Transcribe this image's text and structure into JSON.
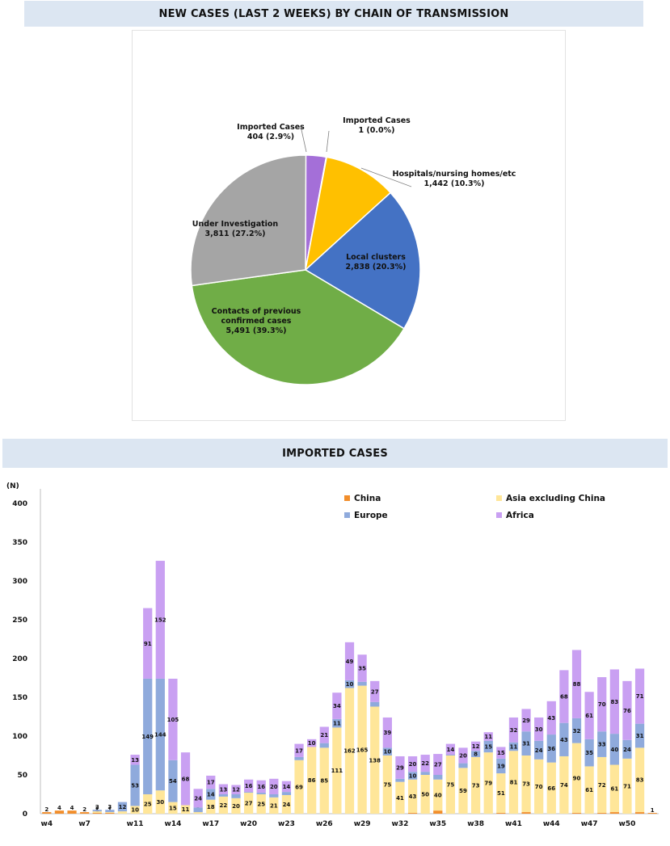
{
  "pie_title": "NEW CASES (LAST 2 WEEKS) BY CHAIN OF TRANSMISSION",
  "bar_title": "IMPORTED CASES",
  "chart_data": [
    {
      "type": "pie",
      "slices": [
        {
          "name": "Imported Cases",
          "label_lines": [
            "Imported Cases",
            "404 (2.9%)"
          ],
          "value": 404,
          "percent": 2.9,
          "color": "#a46fd8"
        },
        {
          "name": "Imported Cases",
          "label_lines": [
            "Imported Cases",
            "1 (0.0%)"
          ],
          "value": 1,
          "percent": 0.0,
          "color": "#7f4fb0"
        },
        {
          "name": "Hospitals/nursing homes/etc",
          "label_lines": [
            "Hospitals/nursing homes/etc",
            "1,442 (10.3%)"
          ],
          "value": 1442,
          "percent": 10.3,
          "color": "#ffc000"
        },
        {
          "name": "Local clusters",
          "label_lines": [
            "Local clusters",
            "2,838 (20.3%)"
          ],
          "value": 2838,
          "percent": 20.3,
          "color": "#4472c4"
        },
        {
          "name": "Contacts of previous confirmed cases",
          "label_lines": [
            "Contacts of previous",
            "confirmed cases",
            "5,491 (39.3%)"
          ],
          "value": 5491,
          "percent": 39.3,
          "color": "#70ad47"
        },
        {
          "name": "Under Investigation",
          "label_lines": [
            "Under Investigation",
            "3,811 (27.2%)"
          ],
          "value": 3811,
          "percent": 27.2,
          "color": "#a5a5a5"
        }
      ]
    },
    {
      "type": "bar",
      "stacked": true,
      "ylabel": "(N)",
      "ylim": [
        0,
        400
      ],
      "yticks": [
        "0",
        "50",
        "100",
        "150",
        "200",
        "250",
        "300",
        "350",
        "400"
      ],
      "x": [
        "w4",
        "w5",
        "w6",
        "w7",
        "w8",
        "w9",
        "w10",
        "w11",
        "w12",
        "w13",
        "w14",
        "w15",
        "w16",
        "w17",
        "w18",
        "w19",
        "w20",
        "w21",
        "w22",
        "w23",
        "w24",
        "w25",
        "w26",
        "w27",
        "w28",
        "w29",
        "w30",
        "w31",
        "w32",
        "w33",
        "w34",
        "w35",
        "w36",
        "w37",
        "w38",
        "w39",
        "w40",
        "w41",
        "w42",
        "w43",
        "w44",
        "w45",
        "w46",
        "w47",
        "w48",
        "w49",
        "w50",
        "w51",
        "w52"
      ],
      "xtick_labels": [
        "w4",
        "",
        "",
        "w7",
        "",
        "",
        "",
        "w11",
        "",
        "",
        "w14",
        "",
        "",
        "w17",
        "",
        "",
        "w20",
        "",
        "",
        "w23",
        "",
        "",
        "w26",
        "",
        "",
        "w29",
        "",
        "",
        "w32",
        "",
        "",
        "w35",
        "",
        "",
        "w38",
        "",
        "",
        "w41",
        "",
        "",
        "w44",
        "",
        "",
        "w47",
        "",
        "",
        "w50",
        "",
        ""
      ],
      "legend": [
        {
          "name": "China",
          "color": "#f28e2b"
        },
        {
          "name": "Asia excluding China",
          "color": "#ffe699"
        },
        {
          "name": "Europe",
          "color": "#8faadc"
        },
        {
          "name": "Africa",
          "color": "#c9a0f2"
        }
      ],
      "series": [
        {
          "name": "China",
          "color": "#f28e2b",
          "values": [
            2,
            4,
            4,
            2,
            1,
            1,
            0,
            0,
            0,
            0,
            0,
            0,
            0,
            0,
            0,
            0,
            0,
            0,
            0,
            0,
            0,
            0,
            0,
            0,
            0,
            0,
            0,
            0,
            0,
            1,
            0,
            4,
            0,
            0,
            0,
            0,
            1,
            0,
            2,
            0,
            0,
            0,
            1,
            0,
            1,
            2,
            0,
            2,
            1
          ]
        },
        {
          "name": "Asia excluding China",
          "color": "#ffe699",
          "values": [
            0,
            0,
            0,
            0,
            2,
            1,
            3,
            10,
            25,
            30,
            15,
            11,
            2,
            18,
            22,
            20,
            27,
            25,
            21,
            24,
            69,
            86,
            85,
            111,
            162,
            165,
            138,
            75,
            41,
            43,
            50,
            40,
            75,
            59,
            73,
            79,
            51,
            81,
            73,
            70,
            66,
            74,
            90,
            61,
            72,
            61,
            71,
            83,
            0
          ]
        },
        {
          "name": "Europe",
          "color": "#8faadc",
          "values": [
            0,
            0,
            0,
            0,
            2,
            3,
            12,
            53,
            149,
            144,
            54,
            0,
            6,
            14,
            3,
            5,
            1,
            2,
            4,
            4,
            4,
            0,
            6,
            11,
            10,
            5,
            6,
            10,
            4,
            10,
            4,
            6,
            1,
            6,
            8,
            15,
            19,
            11,
            31,
            24,
            36,
            43,
            32,
            35,
            33,
            40,
            24,
            31,
            0
          ]
        },
        {
          "name": "Africa",
          "color": "#c9a0f2",
          "values": [
            0,
            0,
            0,
            0,
            0,
            0,
            0,
            13,
            91,
            152,
            105,
            68,
            24,
            17,
            13,
            12,
            16,
            16,
            20,
            14,
            17,
            10,
            21,
            34,
            49,
            35,
            27,
            39,
            29,
            20,
            22,
            27,
            14,
            20,
            12,
            11,
            15,
            32,
            29,
            30,
            43,
            68,
            88,
            61,
            70,
            83,
            76,
            71,
            0
          ]
        }
      ]
    }
  ]
}
